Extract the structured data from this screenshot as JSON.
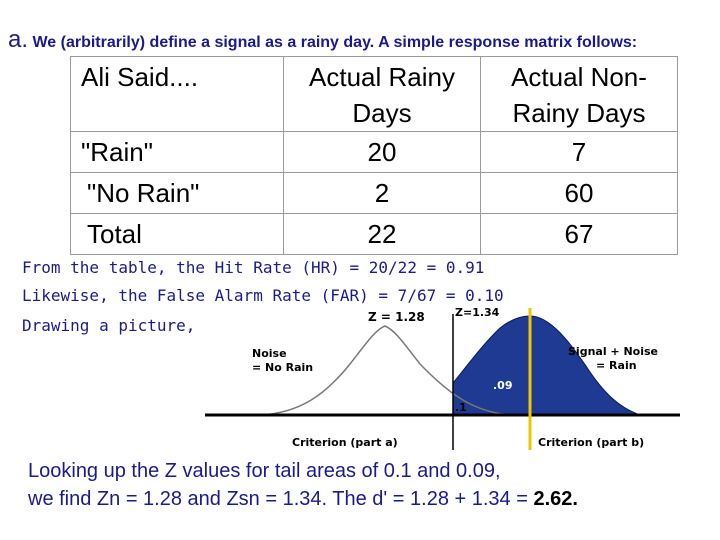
{
  "heading": {
    "letter": "a.",
    "text": "We (arbitrarily) define a signal as a rainy day. A simple response matrix follows:"
  },
  "matrix": {
    "header": {
      "corner": "Ali Said....",
      "col_rainy_line1": "Actual Rainy",
      "col_rainy_line2": "Days",
      "col_nonrainy_line1": "Actual Non-",
      "col_nonrainy_line2": "Rainy Days"
    },
    "rows": [
      {
        "label": "\"Rain\"",
        "rainy": "20",
        "nonrainy": "7"
      },
      {
        "label": "\"No Rain\"",
        "rainy": "2",
        "nonrainy": "60"
      },
      {
        "label": "Total",
        "rainy": "22",
        "nonrainy": "67"
      }
    ]
  },
  "notes": {
    "line1": "From the table, the Hit Rate (HR) = 20/22 = 0.91",
    "line2": "Likewise, the False Alarm Rate (FAR) = 7/67 = 0.10",
    "line3": "Drawing a picture,"
  },
  "figure": {
    "z_left": "Z = 1.28",
    "z_right": "Z=1.34",
    "noise_line1": "Noise",
    "noise_line2": "= No Rain",
    "signal_line1": "Signal + Noise",
    "signal_line2": "= Rain",
    "area_sn": ".09",
    "area_n": ".1",
    "criterion_a": "Criterion (part a)",
    "criterion_b": "Criterion (part b)",
    "colors": {
      "signal": "#1f3a93",
      "noise_tail": "#d33a2c",
      "criterion_b": "#f2c500",
      "axis": "#000000"
    }
  },
  "conclusion": {
    "line1": "Looking up the Z values for tail areas of 0.1 and 0.09,",
    "line2_prefix": "we find Zn = 1.28 and Zsn = 1.34. The d' = 1.28 + 1.34 = ",
    "line2_result": "2.62."
  }
}
